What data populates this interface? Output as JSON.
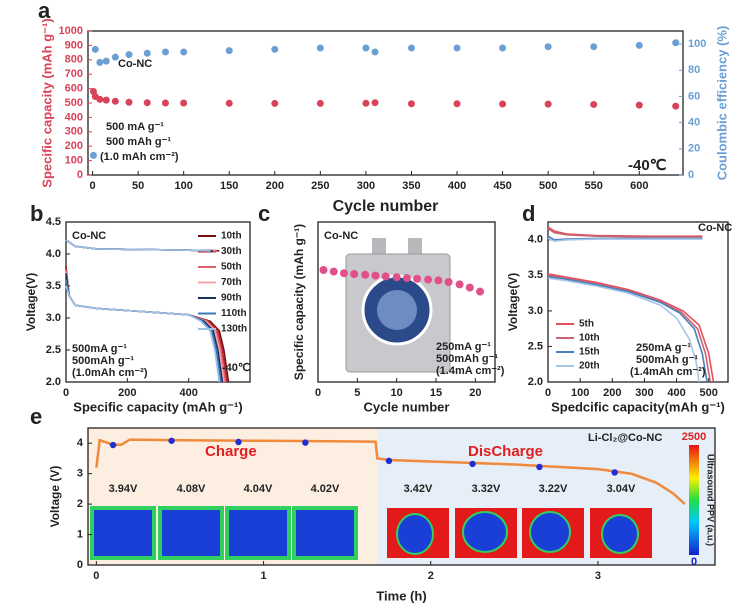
{
  "chart_data": [
    {
      "type": "scatter",
      "label": "a",
      "xlabel": "Cycle number",
      "ylabel": "Specific capacity (mAh g⁻¹)",
      "y2label": "Coulombic efficiency (%)",
      "xlim": [
        -5,
        648
      ],
      "xticks": [
        0,
        50,
        100,
        150,
        200,
        250,
        300,
        350,
        400,
        450,
        500,
        550,
        600
      ],
      "ylim": [
        0,
        1000
      ],
      "yticks": [
        0,
        100,
        200,
        300,
        400,
        500,
        600,
        700,
        800,
        900,
        1000
      ],
      "y2lim": [
        0,
        110
      ],
      "y2ticks": [
        0,
        20,
        40,
        60,
        80,
        100
      ],
      "annotations": [
        "Co-NC",
        "500 mA g⁻¹",
        "500 mAh g⁻¹",
        "(1.0 mAh cm⁻²)",
        "-40℃"
      ],
      "series": [
        {
          "color": "#d9435a",
          "x": [
            1,
            3,
            8,
            15,
            25,
            40,
            60,
            80,
            100,
            150,
            200,
            250,
            300,
            310,
            350,
            400,
            450,
            500,
            550,
            600,
            640
          ],
          "values": [
            580,
            545,
            525,
            520,
            512,
            505,
            502,
            500,
            500,
            498,
            497,
            497,
            498,
            502,
            495,
            495,
            493,
            492,
            490,
            485,
            478
          ]
        },
        {
          "color": "#6a9fd4",
          "axis": "y2",
          "x": [
            1,
            3,
            8,
            15,
            25,
            40,
            60,
            80,
            100,
            150,
            200,
            250,
            300,
            310,
            350,
            400,
            450,
            500,
            550,
            600,
            640
          ],
          "values": [
            15,
            96,
            86,
            87,
            90,
            92,
            93,
            94,
            94,
            95,
            96,
            97,
            97,
            94,
            97,
            97,
            97,
            98,
            98,
            99,
            101
          ]
        }
      ]
    },
    {
      "type": "line",
      "label": "b",
      "xlabel": "Specific capacity (mAh g⁻¹)",
      "ylabel": "Voltage(V)",
      "xlim": [
        0,
        600
      ],
      "xticks": [
        0,
        200,
        400
      ],
      "ylim": [
        2.0,
        4.5
      ],
      "yticks": [
        {
          "value": 2,
          "label": "2.0"
        },
        2.5,
        {
          "value": 3,
          "label": "3.0"
        },
        3.5,
        {
          "value": 4,
          "label": "4.0"
        },
        4.5
      ],
      "annotations": [
        "Co-NC",
        "500mA g⁻¹",
        "500mAh g⁻¹",
        "(1.0mAh cm⁻²)",
        "-40℃"
      ],
      "series": [
        {
          "name": "10th",
          "color": "#7b0d14",
          "x": [
            0,
            30,
            100,
            250,
            400,
            500,
            null,
            0,
            10,
            30,
            100,
            250,
            400,
            470,
            500,
            515,
            530
          ],
          "values": [
            4.22,
            4.12,
            4.08,
            4.07,
            4.06,
            4.05,
            null,
            3.8,
            3.35,
            3.2,
            3.15,
            3.1,
            3.05,
            2.95,
            2.8,
            2.5,
            2.0
          ]
        },
        {
          "name": "30th",
          "color": "#b5252e",
          "x": [
            0,
            30,
            100,
            250,
            400,
            495,
            null,
            0,
            10,
            30,
            100,
            250,
            400,
            465,
            495,
            510,
            525
          ],
          "values": [
            4.22,
            4.12,
            4.08,
            4.07,
            4.06,
            4.05,
            null,
            3.78,
            3.35,
            3.2,
            3.15,
            3.1,
            3.05,
            2.95,
            2.8,
            2.5,
            2.0
          ]
        },
        {
          "name": "50th",
          "color": "#e0606a",
          "x": [
            0,
            30,
            100,
            250,
            400,
            490,
            null,
            0,
            10,
            30,
            100,
            250,
            400,
            460,
            490,
            505,
            520
          ],
          "values": [
            4.22,
            4.12,
            4.08,
            4.07,
            4.06,
            4.05,
            null,
            3.75,
            3.35,
            3.2,
            3.15,
            3.1,
            3.05,
            2.95,
            2.8,
            2.5,
            2.0
          ]
        },
        {
          "name": "70th",
          "color": "#f2a5aa",
          "x": [
            0,
            30,
            100,
            250,
            400,
            485,
            null,
            0,
            10,
            30,
            100,
            250,
            400,
            455,
            485,
            500,
            515
          ],
          "values": [
            4.22,
            4.12,
            4.08,
            4.07,
            4.06,
            4.05,
            null,
            3.72,
            3.35,
            3.2,
            3.15,
            3.1,
            3.05,
            2.95,
            2.8,
            2.5,
            2.0
          ]
        },
        {
          "name": "90th",
          "color": "#1d2f5e",
          "x": [
            0,
            30,
            100,
            250,
            400,
            480,
            null,
            0,
            10,
            30,
            100,
            250,
            400,
            450,
            480,
            495,
            510
          ],
          "values": [
            4.22,
            4.12,
            4.08,
            4.07,
            4.06,
            4.05,
            null,
            3.7,
            3.35,
            3.2,
            3.15,
            3.1,
            3.05,
            2.95,
            2.8,
            2.5,
            2.0
          ]
        },
        {
          "name": "110th",
          "color": "#3c78b8",
          "x": [
            0,
            30,
            100,
            250,
            400,
            475,
            null,
            0,
            10,
            30,
            100,
            250,
            400,
            445,
            475,
            490,
            505
          ],
          "values": [
            4.22,
            4.12,
            4.08,
            4.07,
            4.06,
            4.05,
            null,
            3.6,
            3.35,
            3.2,
            3.15,
            3.1,
            3.05,
            2.95,
            2.8,
            2.5,
            2.0
          ]
        },
        {
          "name": "130th",
          "color": "#9ec3e6",
          "x": [
            0,
            30,
            100,
            250,
            400,
            470,
            null,
            0,
            10,
            30,
            100,
            250,
            400,
            440,
            470,
            485,
            500
          ],
          "values": [
            4.22,
            4.12,
            4.08,
            4.07,
            4.06,
            4.05,
            null,
            3.5,
            3.35,
            3.2,
            3.15,
            3.1,
            3.05,
            2.95,
            2.8,
            2.5,
            2.0
          ]
        }
      ]
    },
    {
      "type": "scatter",
      "label": "c",
      "xlabel": "Cycle number",
      "ylabel": "Specific capacity (mAh g⁻¹)",
      "xlim": [
        0,
        22.5
      ],
      "xticks": [
        0,
        5,
        10,
        15,
        20
      ],
      "ylim": [
        0,
        1000
      ],
      "annotations": [
        "Co-NC",
        "250mA g⁻¹",
        "500mAh g⁻¹",
        "(1.4mA cm⁻²)"
      ],
      "series": [
        {
          "color": "#e0508a",
          "x": [
            0.7,
            2,
            3.3,
            4.6,
            6,
            7.3,
            8.6,
            10,
            11.3,
            12.6,
            14,
            15.3,
            16.6,
            18,
            19.3,
            20.6
          ],
          "values": [
            700,
            690,
            680,
            675,
            670,
            665,
            660,
            655,
            650,
            645,
            640,
            635,
            625,
            610,
            590,
            565
          ]
        }
      ]
    },
    {
      "type": "line",
      "label": "d",
      "xlabel": "Spedcific capacity(mAh g⁻¹)",
      "ylabel": "Voltage(V)",
      "xlim": [
        0,
        560
      ],
      "xticks": [
        0,
        100,
        200,
        300,
        400,
        500
      ],
      "ylim": [
        2.0,
        4.25
      ],
      "yticks": [
        {
          "value": 2,
          "label": "2.0"
        },
        2.5,
        {
          "value": 3,
          "label": "3.0"
        },
        3.5,
        {
          "value": 4,
          "label": "4.0"
        }
      ],
      "annotations": [
        "Co-NC",
        "250mA g⁻¹",
        "500mAh g⁻¹",
        "(1.4mAh cm⁻²)"
      ],
      "series": [
        {
          "name": "5th",
          "color": "#e4505e",
          "x": [
            0,
            20,
            60,
            150,
            300,
            480,
            null,
            0,
            50,
            150,
            250,
            350,
            420,
            470,
            500,
            515
          ],
          "values": [
            4.18,
            4.12,
            4.08,
            4.06,
            4.05,
            4.05,
            null,
            3.52,
            3.48,
            3.4,
            3.3,
            3.15,
            3.0,
            2.8,
            2.4,
            2.0
          ]
        },
        {
          "name": "10th",
          "color": "#c9646f",
          "x": [
            0,
            20,
            60,
            150,
            300,
            480,
            null,
            0,
            50,
            150,
            250,
            350,
            415,
            465,
            490,
            505
          ],
          "values": [
            4.16,
            4.1,
            4.07,
            4.05,
            4.04,
            4.04,
            null,
            3.5,
            3.46,
            3.38,
            3.28,
            3.13,
            2.98,
            2.75,
            2.4,
            2.0
          ]
        },
        {
          "name": "15th",
          "color": "#4a7fc0",
          "x": [
            0,
            20,
            60,
            150,
            300,
            480,
            null,
            0,
            50,
            150,
            250,
            350,
            410,
            455,
            480,
            495
          ],
          "values": [
            4.05,
            4.0,
            4.01,
            4.02,
            4.02,
            4.02,
            null,
            3.48,
            3.45,
            3.37,
            3.27,
            3.12,
            2.97,
            2.75,
            2.4,
            2.0
          ]
        },
        {
          "name": "20th",
          "color": "#a4c6e6",
          "x": [
            0,
            20,
            60,
            150,
            300,
            480,
            null,
            0,
            50,
            150,
            250,
            350,
            400,
            440,
            460,
            470
          ],
          "values": [
            4.02,
            3.98,
            4.0,
            4.01,
            4.01,
            4.01,
            null,
            3.46,
            3.43,
            3.35,
            3.25,
            3.08,
            2.9,
            2.6,
            2.3,
            2.0
          ]
        }
      ]
    },
    {
      "type": "line",
      "label": "e",
      "xlabel": "Time (h)",
      "ylabel": "Voltage (V)",
      "xlim": [
        -0.05,
        3.7
      ],
      "xticks": [
        0,
        1,
        2,
        3
      ],
      "ylim": [
        0,
        4.5
      ],
      "yticks": [
        0,
        1,
        2,
        3,
        4
      ],
      "annotations": [
        "Charge",
        "DisCharge",
        "Li-Cl₂@Co-NC"
      ],
      "series": [
        {
          "color": "#f08a3c",
          "x": [
            0,
            0.02,
            0.1,
            0.15,
            0.2,
            0.5,
            1.0,
            1.5,
            1.67,
            1.68,
            1.75,
            2.0,
            2.5,
            3.0,
            3.2,
            3.35,
            3.45,
            3.52
          ],
          "values": [
            3.2,
            4.1,
            3.95,
            3.95,
            4.12,
            4.1,
            4.08,
            4.06,
            4.05,
            3.5,
            3.45,
            3.4,
            3.3,
            3.15,
            3.0,
            2.7,
            2.35,
            2.0
          ]
        }
      ],
      "markers": {
        "color": "#1f2fd0",
        "x": [
          0.1,
          0.45,
          0.85,
          1.25,
          1.75,
          2.25,
          2.65,
          3.1
        ],
        "values": [
          3.94,
          4.08,
          4.04,
          4.02,
          3.42,
          3.32,
          3.22,
          3.04
        ],
        "value_labels": [
          "3.94V",
          "4.08V",
          "4.04V",
          "4.02V",
          "3.42V",
          "3.32V",
          "3.22V",
          "3.04V"
        ]
      },
      "colorbar": {
        "label": "Ultrasound PPV (a.u.)",
        "lim": [
          0,
          2500
        ]
      }
    }
  ]
}
